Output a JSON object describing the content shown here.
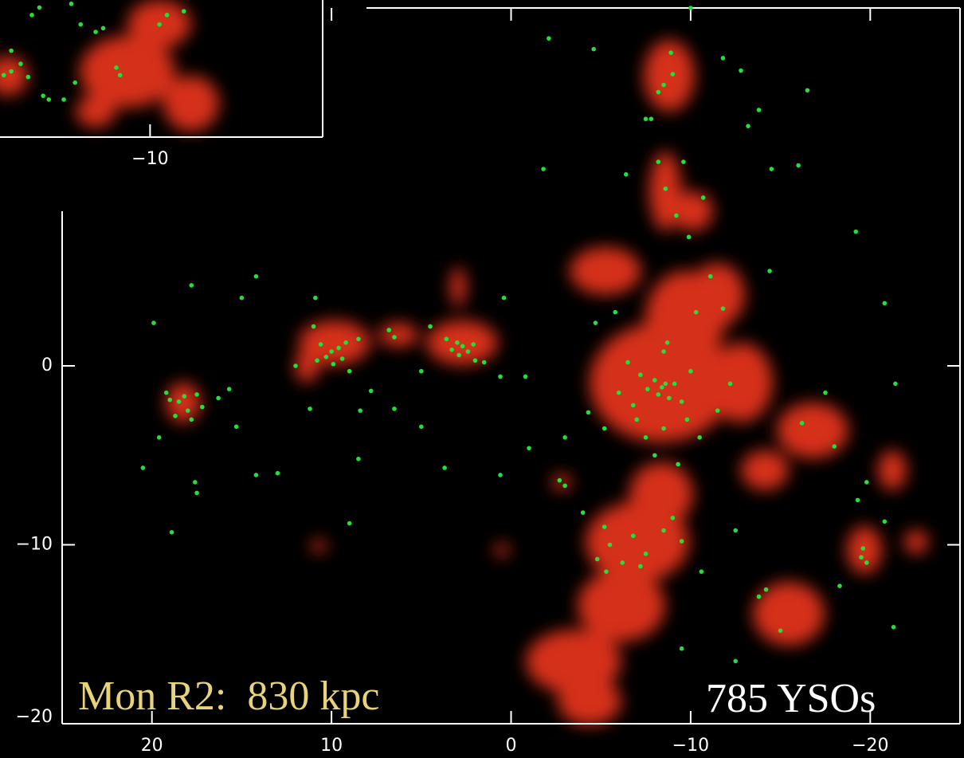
{
  "chart_data": [
    {
      "type": "scatter",
      "annotations": [
        "Mon R2:  830 kpc",
        "785 YSOs"
      ],
      "color": "#22e03a",
      "xlim": [
        25,
        -25
      ],
      "ylim": [
        -20,
        20
      ],
      "xticks": [
        20,
        10,
        0,
        {
          "value": -10,
          "label": "−10"
        },
        {
          "value": -20,
          "label": "−20"
        }
      ],
      "yticks": [
        0,
        {
          "value": -10,
          "label": "−10"
        },
        {
          "value": -20,
          "label": "−20"
        }
      ],
      "x": [
        19.2,
        18.5,
        18,
        17.8,
        18.2,
        17.5,
        19,
        18.7,
        17.2,
        16.3,
        15.7,
        19.6,
        17.6,
        17.5,
        18.9,
        19.9,
        17.8,
        14.2,
        15,
        20.5,
        15.3,
        13,
        10,
        9.6,
        10.3,
        9.4,
        10.6,
        9.2,
        10.8,
        11,
        10.9,
        12,
        9,
        9.9,
        8.5,
        7.8,
        6.5,
        8.4,
        11.2,
        2.7,
        3,
        2.4,
        3.3,
        2.1,
        2.9,
        3.6,
        2,
        1.5,
        6.5,
        6.8,
        4.5,
        0.6,
        0.4,
        -0.8,
        5,
        -8.4,
        -8.2,
        -8.6,
        -8,
        -8.8,
        -7.6,
        -9.1,
        -7.2,
        -9.5,
        -6.8,
        -8.5,
        -7.5,
        -10,
        -6.5,
        -9.8,
        -8,
        -7,
        -10.5,
        -9.3,
        -6,
        -5.2,
        -8.5,
        -8.7,
        -11.5,
        -12.2,
        -5.2,
        -5.5,
        -6.8,
        -7.5,
        -8.5,
        -9,
        -4.8,
        -6.2,
        -7.2,
        -9.5,
        -4,
        -8.5,
        -8.2,
        -9,
        -8.9,
        -7.8,
        -7.5,
        -10,
        -11.8,
        -12.8,
        -9.6,
        -10.7,
        -8.6,
        -8.2,
        -9.2,
        -13.2,
        -14.5,
        -16,
        -16.5,
        -13.8,
        -6.4,
        -1.8,
        -4.6,
        -2.1,
        -9.9,
        -11.1,
        -10.3,
        -11.8,
        -5.8,
        -4.7,
        -14.4,
        -19.2,
        -20.8,
        -17.5,
        -21.4,
        -16.2,
        -18,
        -19.8,
        -19.5,
        -19.8,
        -19.6,
        -20.8,
        -19.3,
        -13.8,
        -14.2,
        -10.6,
        -12.5,
        -9.5,
        -12.5,
        -18.3,
        -15,
        -21.3,
        -2.7,
        -3,
        -4.3,
        -3,
        0.6,
        -1,
        5,
        8.5,
        14.2,
        3.7,
        9,
        -5.3
      ],
      "values": [
        -1.5,
        -2,
        -2.5,
        -3,
        -1.7,
        -1.6,
        -1.9,
        -2.8,
        -2.3,
        -1.8,
        -1.3,
        -4,
        -6.5,
        -7.1,
        -9.3,
        2.4,
        4.5,
        5,
        3.8,
        -5.7,
        -3.4,
        -6,
        0.8,
        1,
        0.5,
        0.4,
        1.2,
        1.3,
        0.3,
        2.2,
        3.8,
        0,
        -0.3,
        0.1,
        1.5,
        -1.4,
        -2.4,
        -2.5,
        -2.4,
        1.1,
        1.3,
        0.8,
        0.9,
        1.2,
        0.6,
        1.5,
        0.3,
        0.2,
        1.6,
        2,
        2.2,
        -0.6,
        3.8,
        -0.6,
        -0.3,
        -1.2,
        -1.6,
        -1,
        -0.8,
        -1.8,
        -1.3,
        -1,
        -0.5,
        -2,
        -2.2,
        -3.5,
        -4,
        -0.3,
        0.2,
        -3,
        -5,
        -3,
        -4,
        -5.5,
        -1.5,
        -3.5,
        0.8,
        1.3,
        -2.5,
        -1,
        -9,
        -10,
        -9.5,
        -10.5,
        -9.2,
        -8.5,
        -10.8,
        -11,
        -11.2,
        -9.8,
        -8.2,
        15.7,
        15.3,
        16.3,
        17.5,
        13.8,
        13.8,
        20,
        17.2,
        16.5,
        11.4,
        9.4,
        9.9,
        11.4,
        8.4,
        13.4,
        11,
        11.2,
        15.4,
        14.3,
        10.7,
        11,
        17.7,
        18.3,
        7.2,
        5,
        3,
        3.2,
        3,
        2.4,
        5.3,
        7.5,
        3.5,
        -1.5,
        -1,
        -3.2,
        -4.5,
        -6.5,
        -10.7,
        -11,
        -10.2,
        -8.7,
        -7.5,
        -12.9,
        -12.5,
        -11.5,
        -9.2,
        -15.8,
        -16.5,
        -12.3,
        -14.8,
        -14.6,
        -6.4,
        -6.7,
        -2.6,
        -4,
        -6.1,
        -4.6,
        -3.4,
        -5.2,
        -6.1,
        -5.7,
        -8.8,
        -11.5
      ]
    },
    {
      "type": "scatter",
      "color": "#22e03a",
      "xlim": [
        -2,
        -19.2
      ],
      "ylim": [
        0,
        7.3
      ],
      "xticks": [
        {
          "value": -10,
          "label": "−10"
        }
      ],
      "x": [
        -2.2,
        -2.6,
        -3.1,
        -3.5,
        -4.3,
        -4.6,
        -5.4,
        -6.3,
        -7.1,
        -7.5,
        -8.2,
        -8.4,
        -6,
        -10.5,
        -10.9,
        -11.8,
        -2.6,
        -3.7,
        -4.1,
        -5.8
      ],
      "values": [
        3.3,
        3.5,
        3.9,
        3.2,
        2.2,
        2,
        2,
        6,
        5.6,
        5.8,
        3.7,
        3.3,
        2.9,
        6,
        6.5,
        6.7,
        4.6,
        6.5,
        6.9,
        7.1
      ]
    }
  ]
}
